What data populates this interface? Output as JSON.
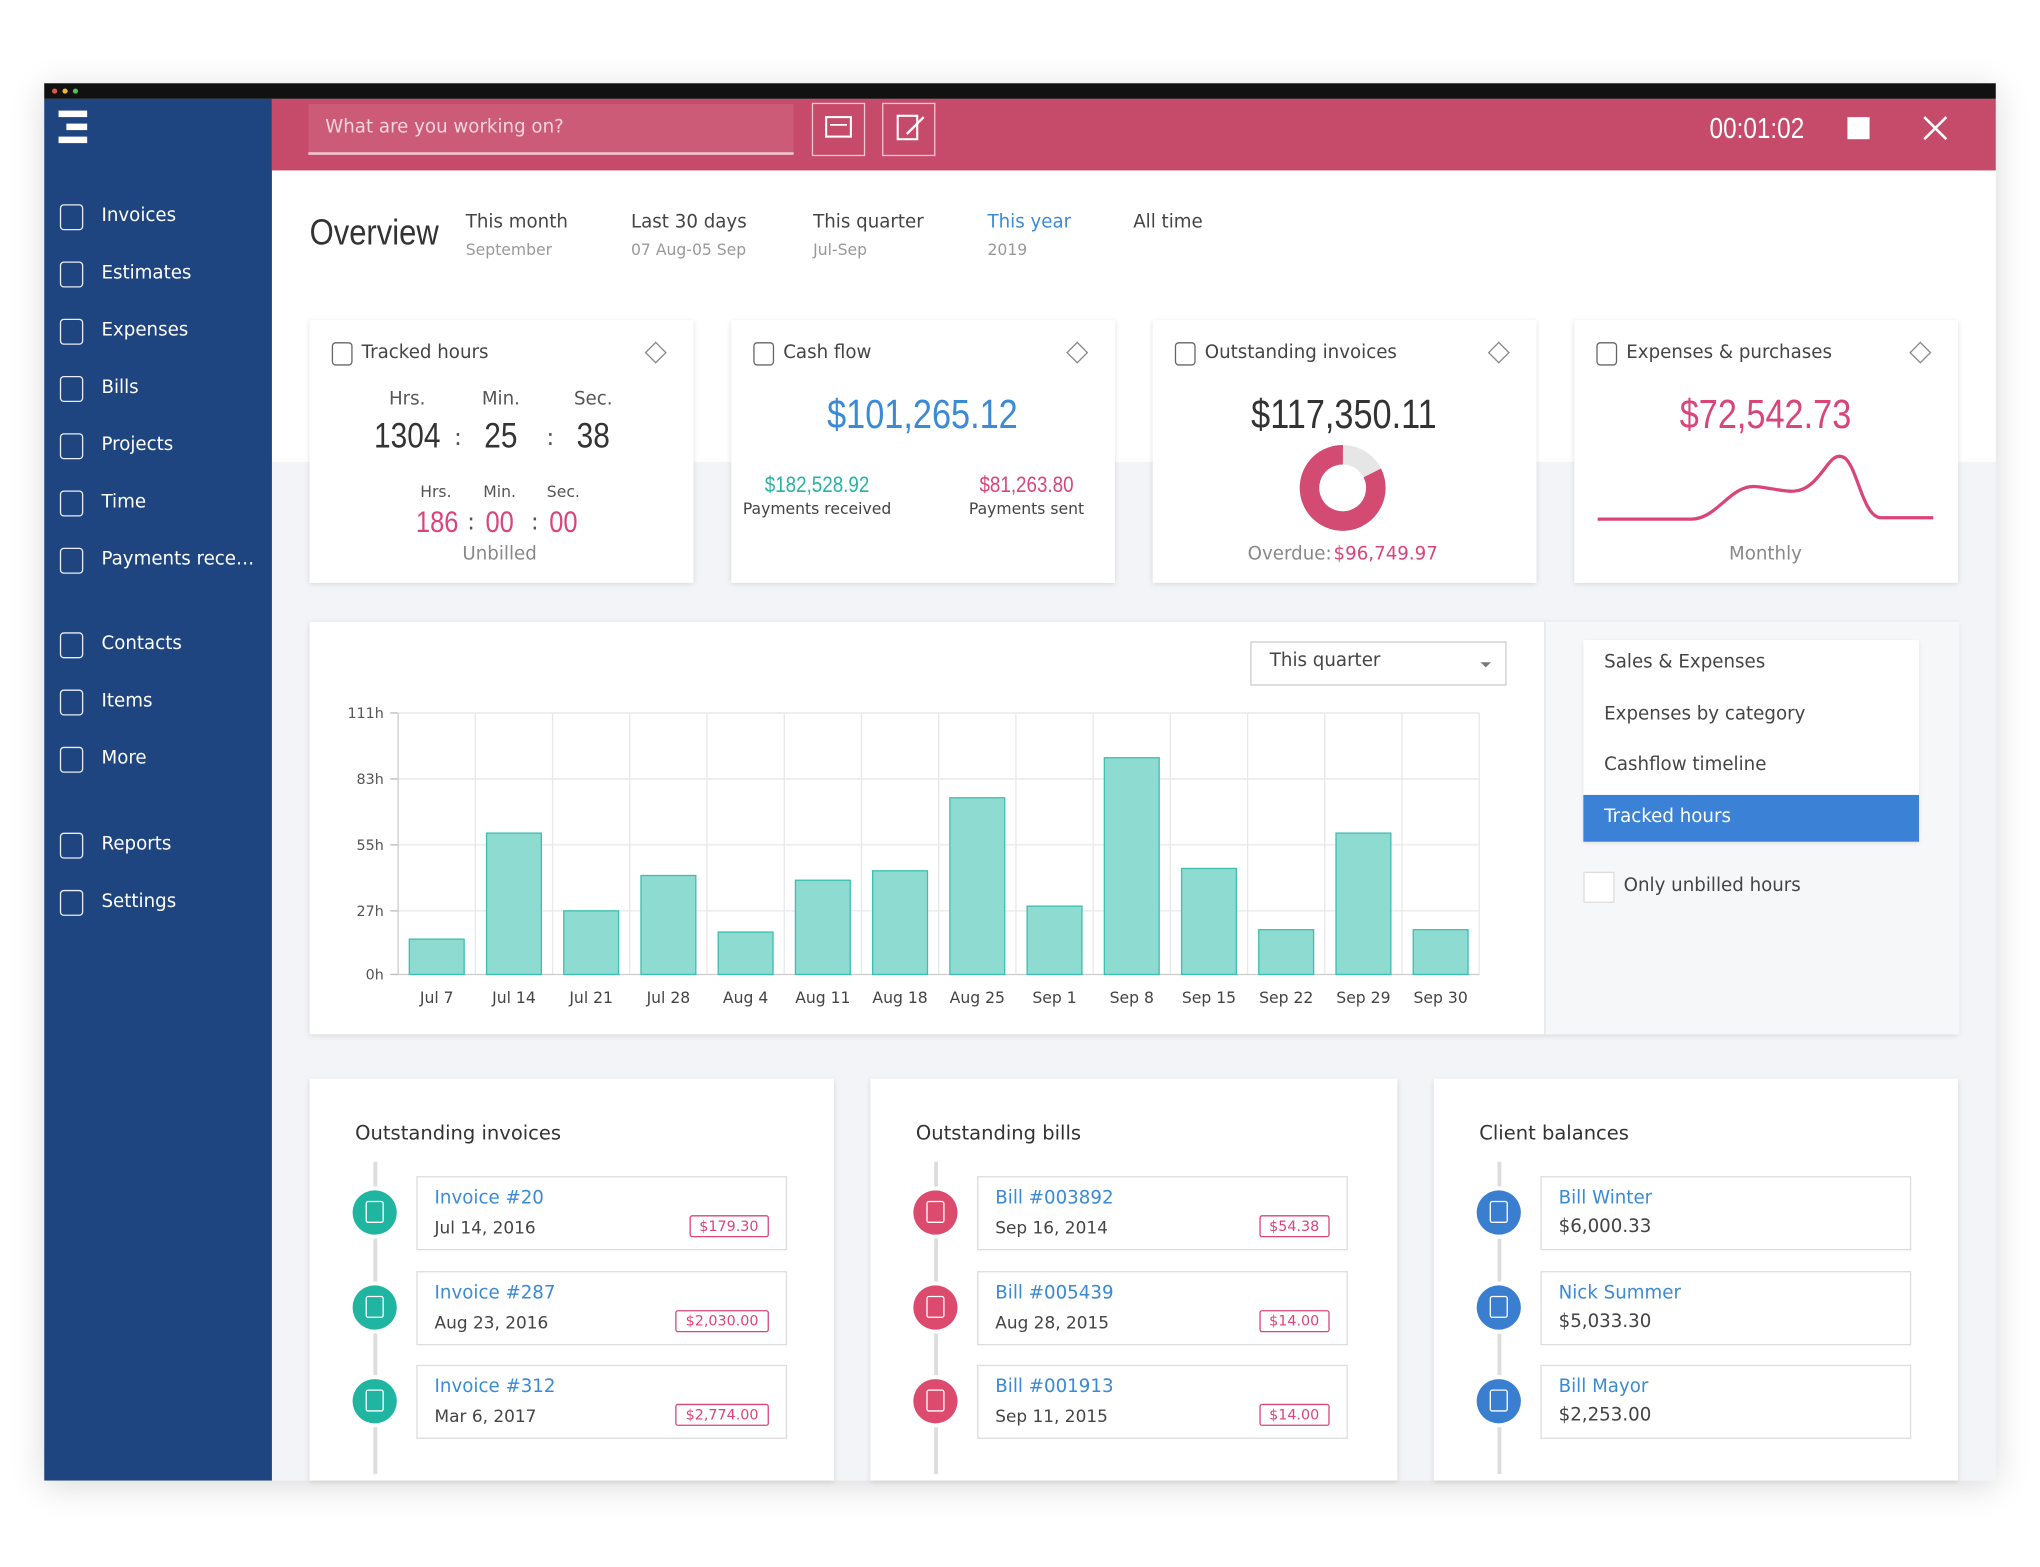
{
  "sidebar": {
    "items": [
      "Invoices",
      "Estimates",
      "Expenses",
      "Bills",
      "Projects",
      "Time",
      "Payments rece…",
      "Contacts",
      "Items",
      "More",
      "Reports",
      "Settings"
    ]
  },
  "topbar": {
    "search_placeholder": "What are you working on?",
    "timer": "00:01:02"
  },
  "overview": {
    "title": "Overview",
    "periods": [
      {
        "label": "This month",
        "sub": "September"
      },
      {
        "label": "Last 30 days",
        "sub": "07 Aug-05 Sep"
      },
      {
        "label": "This quarter",
        "sub": "Jul-Sep"
      },
      {
        "label": "This year",
        "sub": "2019"
      },
      {
        "label": "All time",
        "sub": null
      }
    ]
  },
  "cards": {
    "tracked_hours": {
      "title": "Tracked hours",
      "units": [
        "Hrs.",
        "Min.",
        "Sec."
      ],
      "separator": ":",
      "total": [
        "1304",
        "25",
        "38"
      ],
      "unbilled": [
        "186",
        "00",
        "00"
      ],
      "unbilled_label": "Unbilled"
    },
    "cash_flow": {
      "title": "Cash flow",
      "amount": "$101,265.12",
      "received": "$182,528.92",
      "received_label": "Payments received",
      "sent": "$81,263.80",
      "sent_label": "Payments sent"
    },
    "outstanding": {
      "title": "Outstanding invoices",
      "amount": "$117,350.11",
      "overdue_label": "Overdue:",
      "overdue": "$96,749.97"
    },
    "expenses": {
      "title": "Expenses & purchases",
      "amount": "$72,542.73",
      "period": "Monthly"
    }
  },
  "chart_data": {
    "type": "bar",
    "range_selector": "This quarter",
    "categories": [
      "Jul 7",
      "Jul 14",
      "Jul 21",
      "Jul 28",
      "Aug 4",
      "Aug 11",
      "Aug 18",
      "Aug 25",
      "Sep 1",
      "Sep 8",
      "Sep 15",
      "Sep 22",
      "Sep 29",
      "Sep 30"
    ],
    "values": [
      15,
      60,
      27,
      42,
      18,
      40,
      44,
      75,
      29,
      92,
      45,
      19,
      60,
      19
    ],
    "color": "#8edbd1",
    "ylim": [
      0,
      111
    ],
    "yticks": [
      {
        "value": 0,
        "label": "0h"
      },
      {
        "value": 27,
        "label": "27h"
      },
      {
        "value": 55,
        "label": "55h"
      },
      {
        "value": 83,
        "label": "83h"
      },
      {
        "value": 111,
        "label": "111h"
      }
    ],
    "grid": true
  },
  "chart_tabs": {
    "items": [
      "Sales & Expenses",
      "Expenses by category",
      "Cashflow timeline",
      "Tracked hours"
    ],
    "checkbox": "Only unbilled hours"
  },
  "lists": {
    "invoices": {
      "title": "Outstanding invoices",
      "items": [
        {
          "title": "Invoice #20",
          "date": "Jul 14, 2016",
          "amount": "$179.30"
        },
        {
          "title": "Invoice #287",
          "date": "Aug 23, 2016",
          "amount": "$2,030.00"
        },
        {
          "title": "Invoice #312",
          "date": "Mar 6, 2017",
          "amount": "$2,774.00"
        }
      ]
    },
    "bills": {
      "title": "Outstanding bills",
      "items": [
        {
          "title": "Bill #003892",
          "date": "Sep 16, 2014",
          "amount": "$54.38"
        },
        {
          "title": "Bill #005439",
          "date": "Aug 28, 2015",
          "amount": "$14.00"
        },
        {
          "title": "Bill #001913",
          "date": "Sep 11, 2015",
          "amount": "$14.00"
        }
      ]
    },
    "clients": {
      "title": "Client balances",
      "items": [
        {
          "title": "Bill Winter",
          "amount": "$6,000.33"
        },
        {
          "title": "Nick Summer",
          "amount": "$5,033.30"
        },
        {
          "title": "Bill Mayor",
          "amount": "$2,253.00"
        }
      ]
    }
  }
}
